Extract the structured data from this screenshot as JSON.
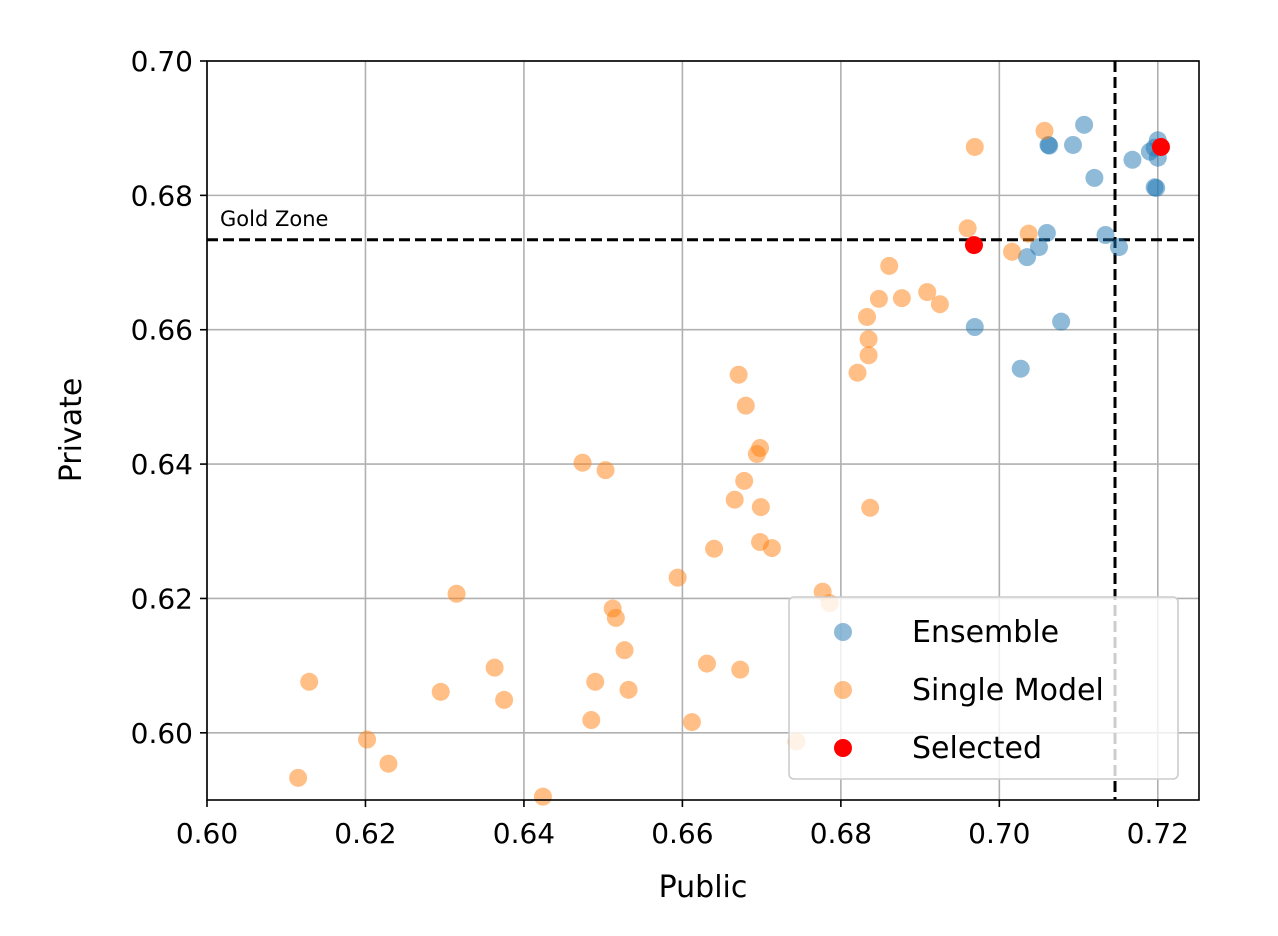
{
  "chart_data": {
    "type": "scatter",
    "title": "",
    "xlabel": "Public",
    "ylabel": "Private",
    "xlim": [
      0.6,
      0.7252
    ],
    "ylim": [
      0.59,
      0.7
    ],
    "xticks": [
      "0.60",
      "0.62",
      "0.64",
      "0.66",
      "0.68",
      "0.70",
      "0.72"
    ],
    "yticks": [
      "0.60",
      "0.62",
      "0.64",
      "0.66",
      "0.68",
      "0.70"
    ],
    "grid": true,
    "legend_position": "lower-right",
    "reference_lines": {
      "vertical_x": 0.7146,
      "horizontal_y": 0.6734,
      "style": "dashed",
      "color": "#000000"
    },
    "annotation": "Gold Zone",
    "series": [
      {
        "name": "Ensemble",
        "color": "#1f77b4",
        "alpha": 0.5,
        "points": [
          [
            0.7062,
            0.6875
          ],
          [
            0.7063,
            0.6874
          ],
          [
            0.7107,
            0.6905
          ],
          [
            0.7093,
            0.6875
          ],
          [
            0.712,
            0.6826
          ],
          [
            0.7168,
            0.6853
          ],
          [
            0.719,
            0.6865
          ],
          [
            0.7196,
            0.6871
          ],
          [
            0.72,
            0.6882
          ],
          [
            0.72,
            0.6856
          ],
          [
            0.7196,
            0.6812
          ],
          [
            0.7198,
            0.6811
          ],
          [
            0.706,
            0.6744
          ],
          [
            0.705,
            0.6723
          ],
          [
            0.7035,
            0.6708
          ],
          [
            0.7134,
            0.6741
          ],
          [
            0.7151,
            0.6723
          ],
          [
            0.6969,
            0.6604
          ],
          [
            0.7078,
            0.6612
          ],
          [
            0.7027,
            0.6542
          ]
        ]
      },
      {
        "name": "Single Model",
        "color": "#ff7f0e",
        "alpha": 0.5,
        "points": [
          [
            0.7057,
            0.6896
          ],
          [
            0.6969,
            0.6872
          ],
          [
            0.696,
            0.6751
          ],
          [
            0.7037,
            0.6743
          ],
          [
            0.7016,
            0.6716
          ],
          [
            0.6861,
            0.6695
          ],
          [
            0.6848,
            0.6646
          ],
          [
            0.6877,
            0.6647
          ],
          [
            0.6909,
            0.6656
          ],
          [
            0.6925,
            0.6638
          ],
          [
            0.6833,
            0.6619
          ],
          [
            0.6835,
            0.6586
          ],
          [
            0.6835,
            0.6562
          ],
          [
            0.6821,
            0.6536
          ],
          [
            0.6671,
            0.6533
          ],
          [
            0.668,
            0.6487
          ],
          [
            0.6698,
            0.6424
          ],
          [
            0.6694,
            0.6415
          ],
          [
            0.6678,
            0.6375
          ],
          [
            0.6666,
            0.6347
          ],
          [
            0.6699,
            0.6336
          ],
          [
            0.664,
            0.6274
          ],
          [
            0.6698,
            0.6284
          ],
          [
            0.6713,
            0.6275
          ],
          [
            0.6837,
            0.6335
          ],
          [
            0.6474,
            0.6402
          ],
          [
            0.6503,
            0.6391
          ],
          [
            0.6594,
            0.6231
          ],
          [
            0.6777,
            0.621
          ],
          [
            0.6786,
            0.6193
          ],
          [
            0.6315,
            0.6207
          ],
          [
            0.6512,
            0.6185
          ],
          [
            0.6516,
            0.6171
          ],
          [
            0.6527,
            0.6123
          ],
          [
            0.6631,
            0.6103
          ],
          [
            0.6673,
            0.6094
          ],
          [
            0.6363,
            0.6097
          ],
          [
            0.6375,
            0.6049
          ],
          [
            0.6295,
            0.6061
          ],
          [
            0.649,
            0.6076
          ],
          [
            0.6532,
            0.6064
          ],
          [
            0.6129,
            0.6076
          ],
          [
            0.6485,
            0.6019
          ],
          [
            0.6612,
            0.6016
          ],
          [
            0.6744,
            0.5987
          ],
          [
            0.6202,
            0.599
          ],
          [
            0.6229,
            0.5954
          ],
          [
            0.6115,
            0.5933
          ],
          [
            0.6424,
            0.5905
          ]
        ]
      },
      {
        "name": "Selected",
        "color": "#ff0000",
        "alpha": 1,
        "points": [
          [
            0.7204,
            0.6872
          ],
          [
            0.6968,
            0.6726
          ]
        ]
      }
    ]
  }
}
